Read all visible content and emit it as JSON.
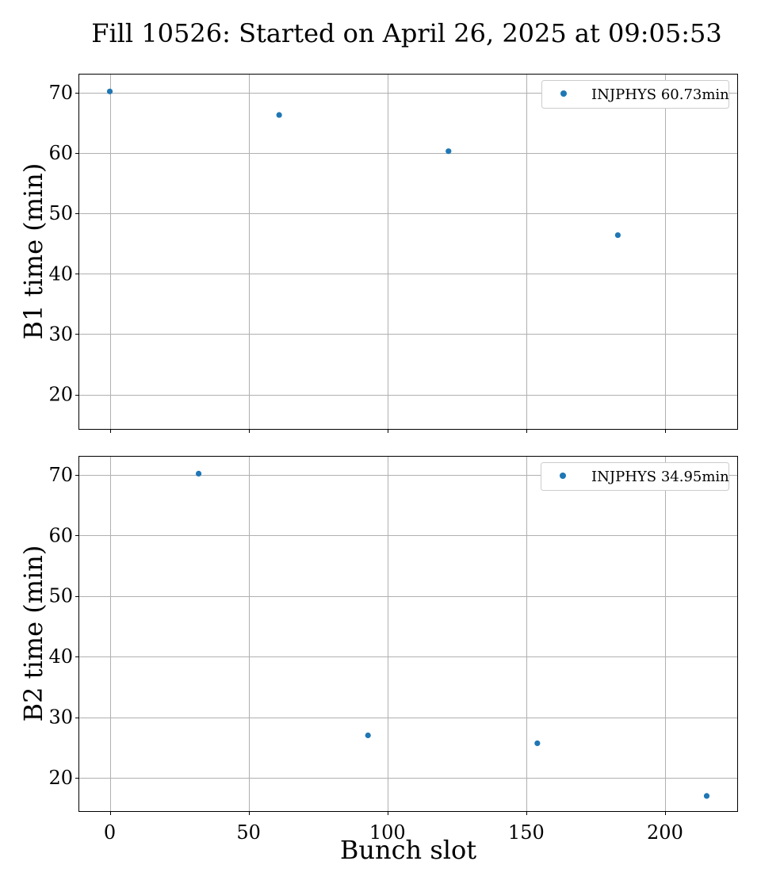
{
  "chart_data": {
    "type": "scatter",
    "title": "Fill 10526: Started on April 26, 2025 at 09:05:53",
    "xlabel": "Bunch slot",
    "xlim": [
      -11,
      226
    ],
    "xticks": [
      0,
      50,
      100,
      150,
      200
    ],
    "marker_color": "#1f77b4",
    "grid": true,
    "legend_location": "top-right",
    "panels": [
      {
        "ylabel": "B1 time (min)",
        "ylim": [
          14.3,
          73.0
        ],
        "yticks": [
          20,
          30,
          40,
          50,
          60,
          70
        ],
        "show_xtick_labels": false,
        "series": [
          {
            "name": "INJPHYS 60.73min",
            "x": [
              0,
              61,
              122,
              183
            ],
            "y": [
              70.2,
              66.3,
              60.3,
              46.4
            ]
          }
        ]
      },
      {
        "ylabel": "B2 time (min)",
        "ylim": [
          14.5,
          73.0
        ],
        "yticks": [
          20,
          30,
          40,
          50,
          60,
          70
        ],
        "show_xtick_labels": true,
        "series": [
          {
            "name": "INJPHYS 34.95min",
            "x": [
              32,
              93,
              154,
              215
            ],
            "y": [
              70.2,
              27.0,
              25.7,
              17.0
            ]
          }
        ]
      }
    ]
  }
}
